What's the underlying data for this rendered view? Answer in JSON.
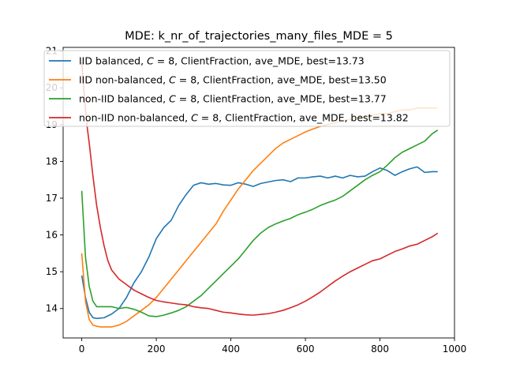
{
  "chart_data": {
    "type": "line",
    "title": "MDE: k_nr_of_trajectories_many_files_MDE = 5",
    "xlabel": "",
    "ylabel": "",
    "xlim": [
      -50,
      1000
    ],
    "ylim": [
      13.2,
      21.1
    ],
    "x_ticks": [
      0,
      200,
      400,
      600,
      800,
      1000
    ],
    "y_ticks": [
      14,
      15,
      16,
      17,
      18,
      19,
      20,
      21
    ],
    "x_tick_labels": [
      "0",
      "200",
      "400",
      "600",
      "800",
      "1000"
    ],
    "y_tick_labels": [
      "14",
      "15",
      "16",
      "17",
      "18",
      "19",
      "20",
      "21"
    ],
    "grid": false,
    "legend_position": "top",
    "series": [
      {
        "name": "IID balanced, C = 8, ClientFraction, ave_MDE, best=13.73",
        "legend": {
          "prefix": "IID balanced, ",
          "var": "C",
          "suffix": " = 8, ClientFraction, ave_MDE, best=13.73"
        },
        "color": "#1f77b4",
        "x": [
          0,
          10,
          20,
          30,
          40,
          60,
          80,
          100,
          120,
          140,
          160,
          180,
          200,
          220,
          240,
          260,
          280,
          300,
          320,
          340,
          360,
          380,
          400,
          420,
          440,
          460,
          480,
          500,
          520,
          540,
          560,
          580,
          600,
          620,
          640,
          660,
          680,
          700,
          720,
          740,
          760,
          780,
          800,
          820,
          840,
          860,
          880,
          900,
          920,
          940,
          955
        ],
        "y": [
          14.9,
          14.3,
          13.9,
          13.75,
          13.73,
          13.75,
          13.85,
          14.0,
          14.3,
          14.7,
          15.0,
          15.4,
          15.9,
          16.2,
          16.4,
          16.8,
          17.1,
          17.35,
          17.42,
          17.38,
          17.4,
          17.36,
          17.35,
          17.42,
          17.38,
          17.32,
          17.4,
          17.44,
          17.48,
          17.5,
          17.45,
          17.55,
          17.55,
          17.58,
          17.6,
          17.55,
          17.6,
          17.55,
          17.62,
          17.58,
          17.6,
          17.72,
          17.82,
          17.75,
          17.62,
          17.72,
          17.8,
          17.85,
          17.7,
          17.72,
          17.72
        ]
      },
      {
        "name": "IID non-balanced, C = 8, ClientFraction, ave_MDE, best=13.50",
        "legend": {
          "prefix": "IID non-balanced, ",
          "var": "C",
          "suffix": " = 8, ClientFraction, ave_MDE, best=13.50"
        },
        "color": "#ff7f0e",
        "x": [
          0,
          10,
          20,
          30,
          40,
          50,
          60,
          80,
          100,
          120,
          140,
          160,
          180,
          200,
          220,
          240,
          260,
          280,
          300,
          320,
          340,
          360,
          380,
          400,
          420,
          440,
          460,
          480,
          500,
          520,
          540,
          560,
          580,
          600,
          620,
          640,
          660,
          680,
          700,
          720,
          740,
          760,
          780,
          800,
          820,
          840,
          860,
          880,
          900,
          920,
          940,
          955
        ],
        "y": [
          15.5,
          14.2,
          13.7,
          13.55,
          13.52,
          13.5,
          13.5,
          13.5,
          13.55,
          13.65,
          13.8,
          13.95,
          14.1,
          14.3,
          14.55,
          14.8,
          15.05,
          15.3,
          15.55,
          15.8,
          16.05,
          16.3,
          16.65,
          16.95,
          17.25,
          17.5,
          17.75,
          17.95,
          18.15,
          18.35,
          18.5,
          18.6,
          18.7,
          18.8,
          18.88,
          18.95,
          19.0,
          19.05,
          19.1,
          19.15,
          19.2,
          19.2,
          19.25,
          19.3,
          19.3,
          19.35,
          19.4,
          19.4,
          19.45,
          19.45,
          19.45,
          19.45
        ]
      },
      {
        "name": "non-IID balanced, C = 8, ClientFraction, ave_MDE, best=13.77",
        "legend": {
          "prefix": "non-IID balanced, ",
          "var": "C",
          "suffix": " = 8, ClientFraction, ave_MDE, best=13.77"
        },
        "color": "#2ca02c",
        "x": [
          0,
          10,
          20,
          30,
          40,
          60,
          80,
          100,
          120,
          140,
          160,
          180,
          200,
          220,
          240,
          260,
          280,
          300,
          320,
          340,
          360,
          380,
          400,
          420,
          440,
          460,
          480,
          500,
          520,
          540,
          560,
          580,
          600,
          620,
          640,
          660,
          680,
          700,
          720,
          740,
          760,
          780,
          800,
          820,
          840,
          860,
          880,
          900,
          920,
          940,
          955
        ],
        "y": [
          17.2,
          15.4,
          14.6,
          14.2,
          14.05,
          14.05,
          14.05,
          14.0,
          14.03,
          13.98,
          13.9,
          13.8,
          13.78,
          13.82,
          13.88,
          13.95,
          14.05,
          14.2,
          14.35,
          14.55,
          14.75,
          14.95,
          15.15,
          15.35,
          15.6,
          15.85,
          16.05,
          16.2,
          16.3,
          16.38,
          16.45,
          16.55,
          16.62,
          16.7,
          16.8,
          16.88,
          16.95,
          17.05,
          17.2,
          17.35,
          17.5,
          17.62,
          17.72,
          17.9,
          18.1,
          18.25,
          18.35,
          18.45,
          18.55,
          18.75,
          18.85
        ]
      },
      {
        "name": "non-IID non-balanced, C = 8, ClientFraction, ave_MDE, best=13.82",
        "legend": {
          "prefix": "non-IID non-balanced, ",
          "var": "C",
          "suffix": " = 8, ClientFraction, ave_MDE, best=13.82"
        },
        "color": "#d62728",
        "x": [
          0,
          5,
          10,
          15,
          20,
          30,
          40,
          50,
          60,
          70,
          80,
          100,
          120,
          140,
          160,
          180,
          200,
          220,
          240,
          260,
          280,
          300,
          320,
          340,
          360,
          380,
          400,
          420,
          440,
          460,
          480,
          500,
          520,
          540,
          560,
          580,
          600,
          620,
          640,
          660,
          680,
          700,
          720,
          740,
          760,
          780,
          800,
          820,
          840,
          860,
          880,
          900,
          920,
          940,
          955
        ],
        "y": [
          20.7,
          20.0,
          19.4,
          18.9,
          18.5,
          17.6,
          16.8,
          16.2,
          15.7,
          15.3,
          15.05,
          14.8,
          14.65,
          14.5,
          14.4,
          14.3,
          14.22,
          14.18,
          14.15,
          14.12,
          14.1,
          14.05,
          14.02,
          14.0,
          13.95,
          13.9,
          13.88,
          13.85,
          13.83,
          13.82,
          13.84,
          13.86,
          13.9,
          13.95,
          14.02,
          14.1,
          14.2,
          14.32,
          14.45,
          14.6,
          14.75,
          14.88,
          15.0,
          15.1,
          15.2,
          15.3,
          15.35,
          15.45,
          15.55,
          15.62,
          15.7,
          15.75,
          15.85,
          15.95,
          16.05
        ]
      }
    ]
  }
}
